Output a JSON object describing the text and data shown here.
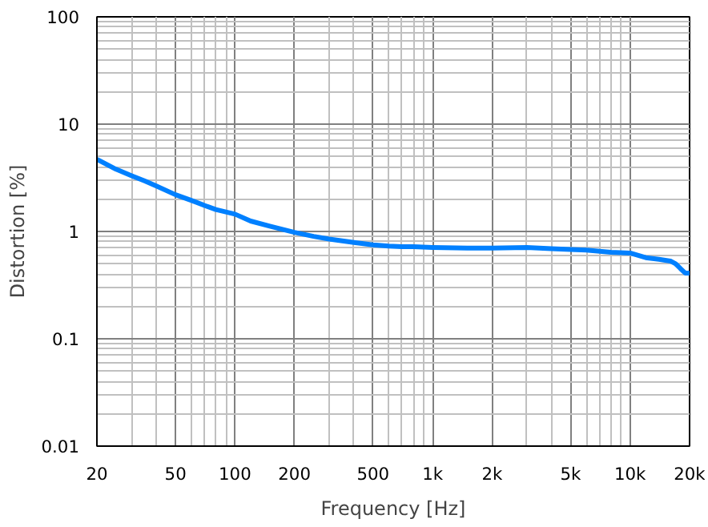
{
  "chart_data": {
    "type": "line",
    "xlabel": "Frequency [Hz]",
    "ylabel": "Distortion [%]",
    "log": "xy",
    "grid": true,
    "marker": "none",
    "line_style": "solid",
    "xlim": [
      20,
      20000
    ],
    "ylim": [
      0.01,
      100
    ],
    "xticks": [
      20,
      50,
      100,
      200,
      500,
      {
        "value": 1000,
        "label": "1k"
      },
      {
        "value": 2000,
        "label": "2k"
      },
      {
        "value": 5000,
        "label": "5k"
      },
      {
        "value": 10000,
        "label": "10k"
      },
      {
        "value": 20000,
        "label": "20k"
      }
    ],
    "yticks": [
      0.01,
      0.1,
      1,
      10,
      100
    ],
    "series": [
      {
        "color": "#0080ff",
        "x": [
          20,
          25,
          30,
          35,
          40,
          50,
          60,
          70,
          80,
          100,
          120,
          150,
          200,
          250,
          300,
          400,
          500,
          600,
          700,
          800,
          1000,
          1500,
          2000,
          3000,
          4000,
          5000,
          6000,
          8000,
          10000,
          12000,
          14000,
          16000,
          17000,
          18000,
          19000,
          20000
        ],
        "values": [
          4.7,
          3.8,
          3.3,
          2.95,
          2.65,
          2.2,
          1.95,
          1.75,
          1.6,
          1.45,
          1.25,
          1.12,
          0.98,
          0.9,
          0.85,
          0.79,
          0.75,
          0.73,
          0.72,
          0.72,
          0.71,
          0.7,
          0.7,
          0.71,
          0.69,
          0.68,
          0.67,
          0.64,
          0.63,
          0.57,
          0.55,
          0.53,
          0.5,
          0.45,
          0.41,
          0.41
        ]
      }
    ]
  }
}
